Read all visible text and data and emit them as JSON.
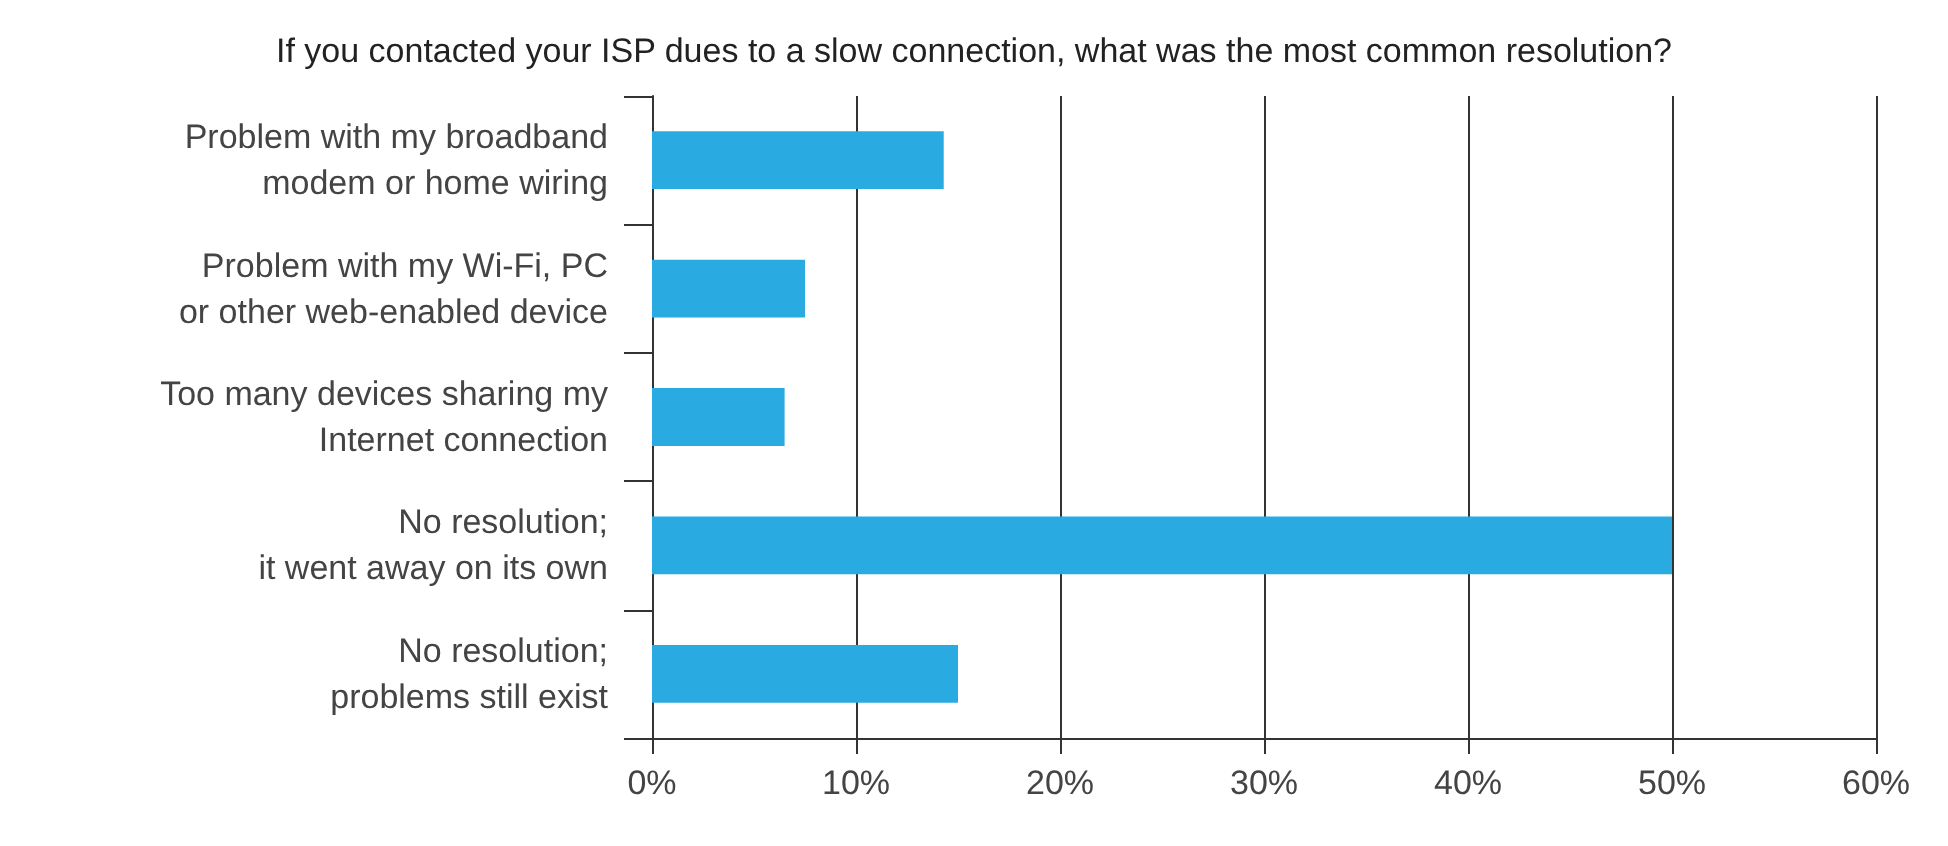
{
  "chart_data": {
    "type": "bar",
    "orientation": "horizontal",
    "title": "If you contacted your ISP dues to a slow connection, what was the most common resolution?",
    "categories": [
      "Problem with my broadband\nmodem or home wiring",
      "Problem with my Wi-Fi, PC\nor other web-enabled device",
      "Too many devices sharing my\nInternet connection",
      "No resolution;\nit went away on its own",
      "No resolution;\nproblems still exist"
    ],
    "values": [
      14.3,
      7.5,
      6.5,
      50,
      15.0
    ],
    "color": "#29abe2",
    "xlim": [
      0,
      60
    ],
    "xticks": [
      {
        "value": 0,
        "label": "0%"
      },
      {
        "value": 10,
        "label": "10%"
      },
      {
        "value": 20,
        "label": "20%"
      },
      {
        "value": 30,
        "label": "30%"
      },
      {
        "value": 40,
        "label": "40%"
      },
      {
        "value": 50,
        "label": "50%"
      },
      {
        "value": 60,
        "label": "60%"
      }
    ],
    "grid": "x"
  }
}
